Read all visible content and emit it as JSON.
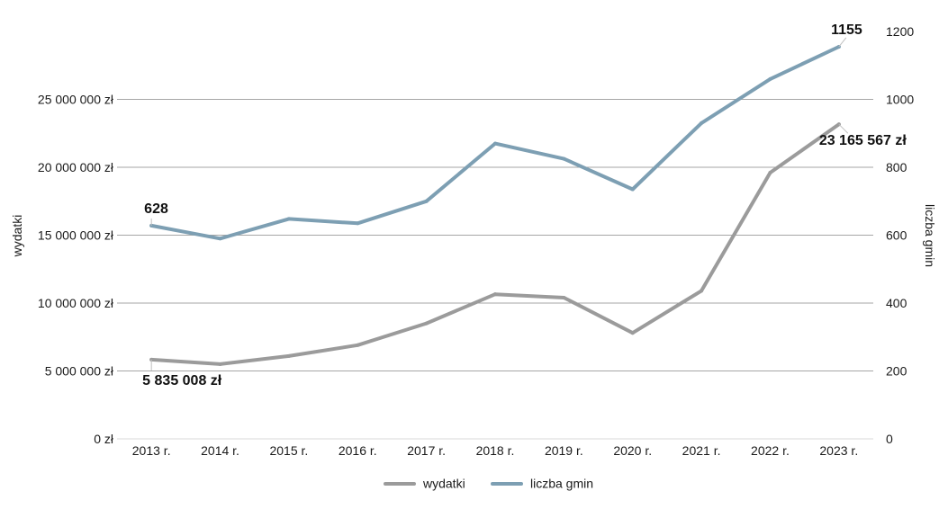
{
  "chart_data": {
    "type": "line",
    "categories": [
      "2013 r.",
      "2014 r.",
      "2015 r.",
      "2016 r.",
      "2017 r.",
      "2018 r.",
      "2019 r.",
      "2020 r.",
      "2021 r.",
      "2022 r.",
      "2023 r."
    ],
    "series": [
      {
        "name": "wydatki",
        "axis": "left",
        "color": "#9b9b9b",
        "values": [
          5835008,
          5500000,
          6100000,
          6900000,
          8500000,
          10650000,
          10400000,
          7800000,
          10900000,
          19600000,
          23165567
        ]
      },
      {
        "name": "liczba gmin",
        "axis": "right",
        "color": "#7d9fb3",
        "values": [
          628,
          590,
          648,
          635,
          700,
          870,
          825,
          735,
          930,
          1060,
          1155
        ]
      }
    ],
    "left_axis": {
      "label": "wydatki",
      "ylim": [
        0,
        30000000
      ],
      "ticks": [
        0,
        5000000,
        10000000,
        15000000,
        20000000,
        25000000
      ],
      "tick_labels": [
        "0 zł",
        "5 000 000 zł",
        "10 000 000 zł",
        "15 000 000 zł",
        "20 000 000 zł",
        "25 000 000 zł"
      ]
    },
    "right_axis": {
      "label": "liczba gmin",
      "ylim": [
        0,
        1200
      ],
      "ticks": [
        0,
        200,
        400,
        600,
        800,
        1000,
        1200
      ],
      "tick_labels": [
        "0",
        "200",
        "400",
        "600",
        "800",
        "1000",
        "1200"
      ]
    },
    "annotations": [
      {
        "series": 0,
        "index": 0,
        "text": "5 835 008 zł"
      },
      {
        "series": 0,
        "index": 10,
        "text": "23 165 567 zł"
      },
      {
        "series": 1,
        "index": 0,
        "text": "628"
      },
      {
        "series": 1,
        "index": 10,
        "text": "1155"
      }
    ],
    "grid": true,
    "legend": "bottom-center",
    "gridline_color": "#a6a6a6"
  }
}
